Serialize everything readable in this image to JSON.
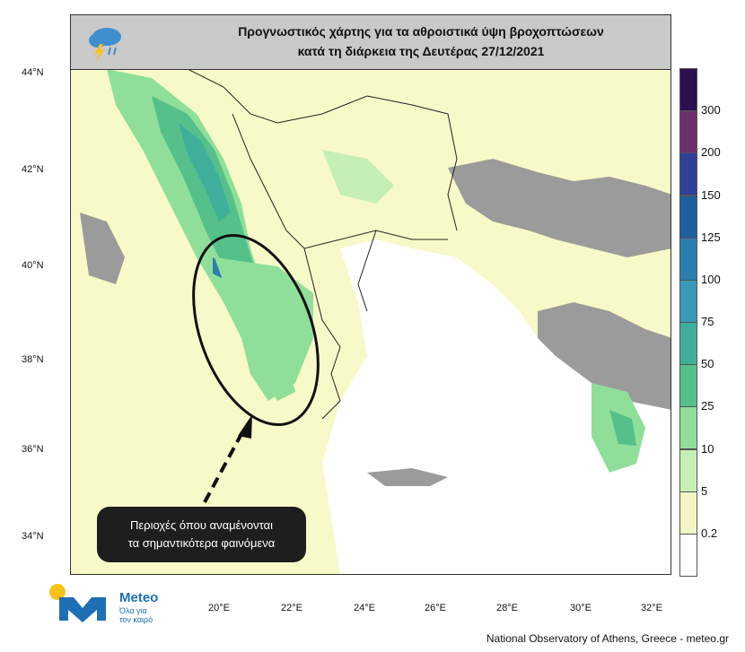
{
  "title": {
    "line1": "Προγνωστικός χάρτης για τα αθροιστικά ύψη βροχοπτώσεων",
    "line2": "κατά τη διάρκεια της Δευτέρας 27/12/2021"
  },
  "latitude_labels": [
    "44°N",
    "42°N",
    "40°N",
    "38°N",
    "36°N",
    "34°N"
  ],
  "longitude_labels": [
    "20°E",
    "22°E",
    "24°E",
    "26°E",
    "28°E",
    "30°E",
    "32°E"
  ],
  "colorbar": {
    "labels": [
      "300",
      "200",
      "150",
      "125",
      "100",
      "75",
      "50",
      "25",
      "10",
      "5",
      "0.2"
    ],
    "colors": [
      "#2b0f4f",
      "#6b2f6b",
      "#2f3f9a",
      "#1f5f9f",
      "#2a7fb0",
      "#3a98b8",
      "#3fae9a",
      "#55c08a",
      "#8fdf9a",
      "#c6efb4",
      "#f2f6c4",
      "#ffffff"
    ]
  },
  "callout": {
    "line1": "Περιοχές όπου αναμένονται",
    "line2": "τα σημαντικότερα φαινόμενα"
  },
  "logo": {
    "name": "Meteo",
    "tagline_line1": "Όλα για",
    "tagline_line2": "τον καιρό"
  },
  "footer": "National Observatory of Athens, Greece - meteo.gr",
  "icon_names": [
    "weather-cloud-icon",
    "meteo-logo-icon"
  ]
}
